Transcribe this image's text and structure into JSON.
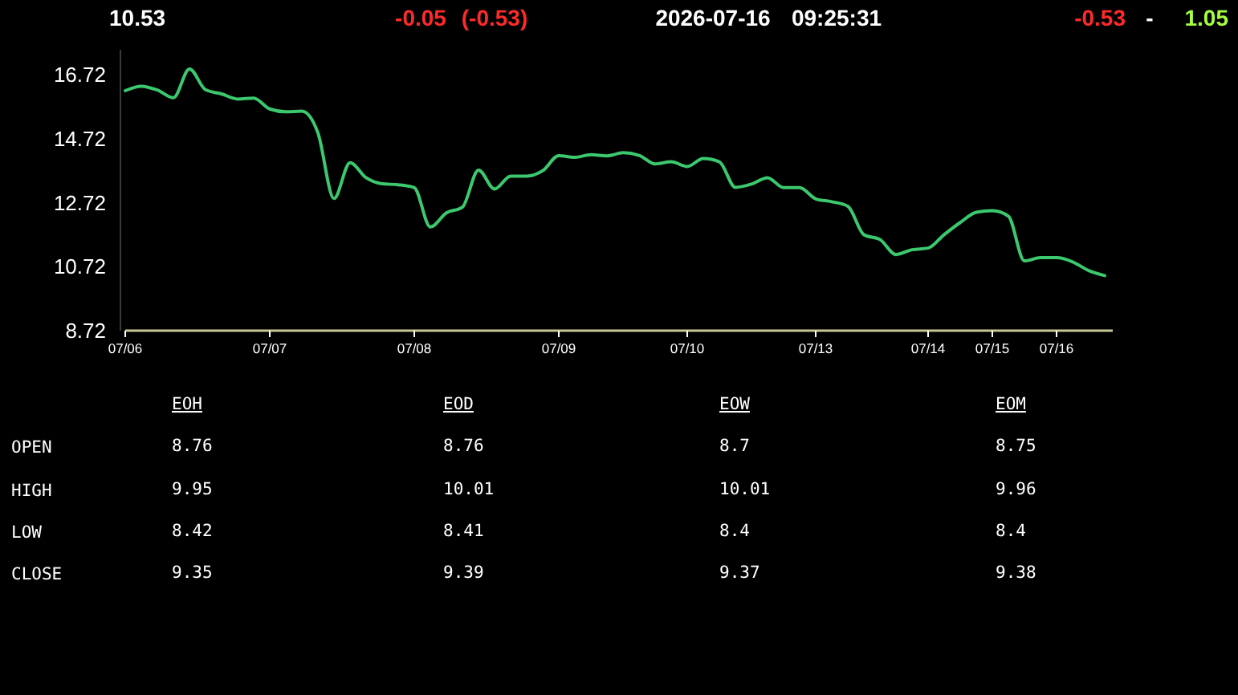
{
  "chart_data": [
    {
      "type": "line",
      "annotations": [
        "10.53",
        "-0.05",
        "(-0.53)",
        "2026-07-16",
        "09:25:31",
        "-0.53",
        "-",
        "1.05"
      ],
      "categories": [
        "07/06",
        null,
        null,
        null,
        null,
        null,
        null,
        null,
        null,
        "07/07",
        null,
        null,
        null,
        null,
        null,
        null,
        null,
        null,
        "07/08",
        null,
        null,
        null,
        null,
        null,
        null,
        null,
        null,
        "07/09",
        null,
        null,
        null,
        null,
        null,
        null,
        null,
        "07/10",
        null,
        null,
        null,
        null,
        null,
        null,
        null,
        "07/13",
        null,
        null,
        null,
        null,
        null,
        null,
        "07/14",
        null,
        null,
        null,
        "07/15",
        null,
        null,
        null,
        "07/16",
        null,
        null,
        null
      ],
      "series": [
        {
          "color": "#3cc86e",
          "values": [
            16.22,
            16.36,
            16.24,
            16.0,
            16.9,
            16.25,
            16.12,
            15.96,
            15.99,
            15.65,
            15.56,
            15.58,
            14.9,
            12.85,
            13.97,
            13.5,
            13.31,
            13.28,
            13.19,
            11.96,
            12.4,
            12.58,
            13.74,
            13.15,
            13.55,
            13.55,
            13.72,
            14.19,
            14.14,
            14.22,
            14.18,
            14.28,
            14.2,
            13.93,
            14.0,
            13.85,
            14.1,
            14.0,
            13.2,
            13.3,
            13.5,
            13.19,
            13.19,
            12.84,
            12.75,
            12.61,
            11.72,
            11.57,
            11.1,
            11.25,
            11.3,
            11.72,
            12.1,
            12.42,
            12.47,
            12.3,
            10.9,
            11.0,
            11.0,
            10.87,
            10.6,
            10.44
          ]
        }
      ],
      "ylim": [
        8.72,
        17.5
      ],
      "yticks": [
        8.72,
        10.72,
        12.72,
        14.72,
        16.72
      ],
      "grid": false,
      "line_style": "solid",
      "marker": "none"
    },
    {
      "type": "heatmap",
      "data_labels": true,
      "categories": [
        "EOH",
        "EOD",
        "EOW",
        "EOM"
      ],
      "y_categories": [
        "OPEN",
        "HIGH",
        "LOW",
        "CLOSE"
      ],
      "cells": [
        [
          8.76,
          8.76,
          8.7,
          8.75
        ],
        [
          9.95,
          10.01,
          10.01,
          9.96
        ],
        [
          8.42,
          8.41,
          8.4,
          8.4
        ],
        [
          9.35,
          9.39,
          9.37,
          9.38
        ]
      ]
    }
  ]
}
